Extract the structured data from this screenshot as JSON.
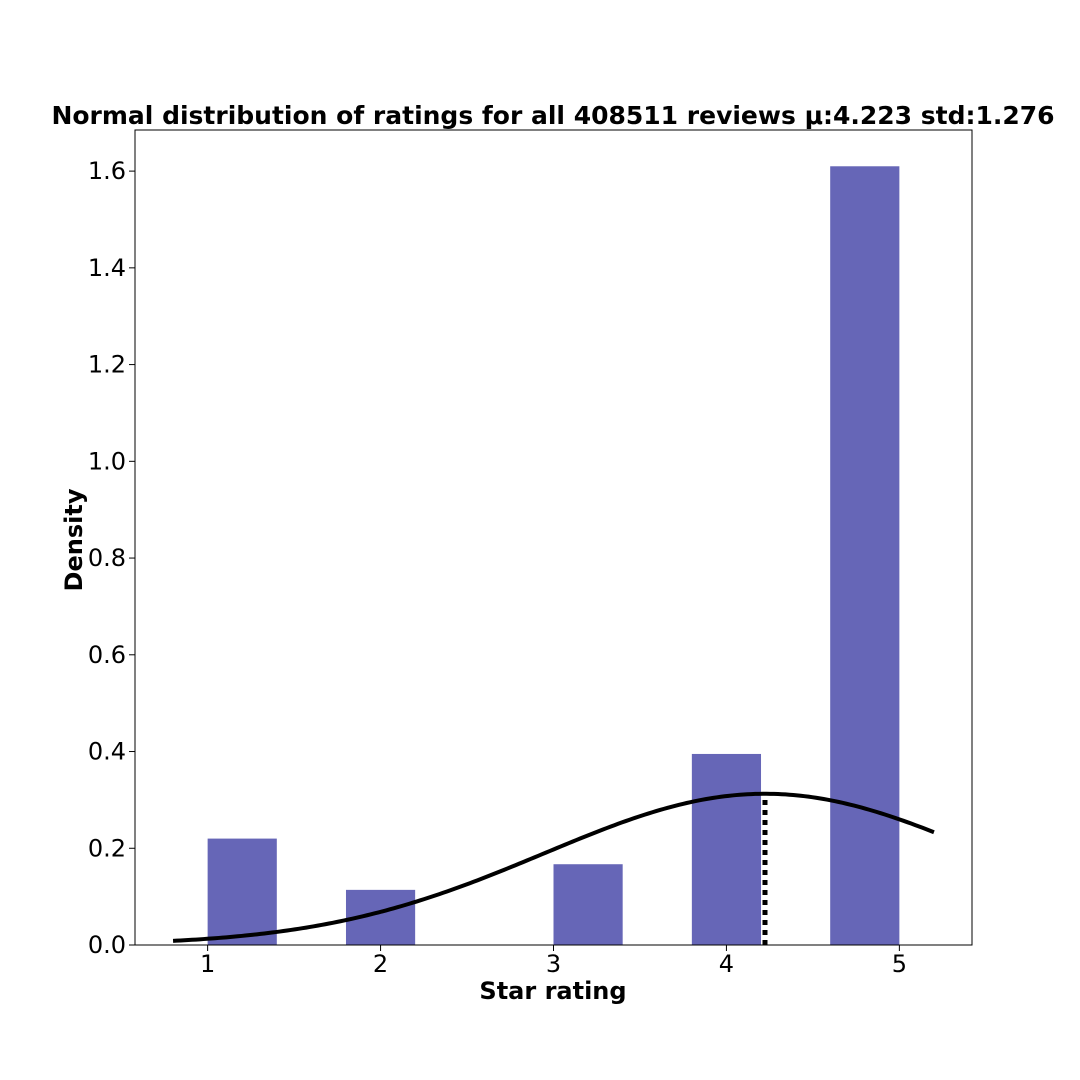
{
  "chart_data": {
    "type": "bar",
    "title": "Normal distribution of ratings for all 408511 reviews μ:4.223 std:1.276",
    "xlabel": "Star rating",
    "ylabel": "Density",
    "xlim": [
      0.58,
      5.42
    ],
    "ylim": [
      0,
      1.685
    ],
    "x_ticks": [
      1,
      2,
      3,
      4,
      5
    ],
    "x_tick_labels": [
      "1",
      "2",
      "3",
      "4",
      "5"
    ],
    "y_ticks": [
      0.0,
      0.2,
      0.4,
      0.6,
      0.8,
      1.0,
      1.2,
      1.4,
      1.6
    ],
    "y_tick_labels": [
      "0.0",
      "0.2",
      "0.4",
      "0.6",
      "0.8",
      "1.0",
      "1.2",
      "1.4",
      "1.6"
    ],
    "bars": [
      {
        "x_start": 1.0,
        "x_end": 1.4,
        "density": 0.22
      },
      {
        "x_start": 1.8,
        "x_end": 2.2,
        "density": 0.114
      },
      {
        "x_start": 3.0,
        "x_end": 3.4,
        "density": 0.167
      },
      {
        "x_start": 3.8,
        "x_end": 4.2,
        "density": 0.395
      },
      {
        "x_start": 4.6,
        "x_end": 5.0,
        "density": 1.61
      }
    ],
    "bar_color": "#6666b7",
    "normal_curve": {
      "mean": 4.223,
      "std": 1.276,
      "x_range": [
        0.8,
        5.2
      ],
      "color": "#000000"
    },
    "mean_line": {
      "x": 4.223,
      "style": "dotted",
      "color": "#000000"
    },
    "grid": false,
    "legend": "none"
  }
}
